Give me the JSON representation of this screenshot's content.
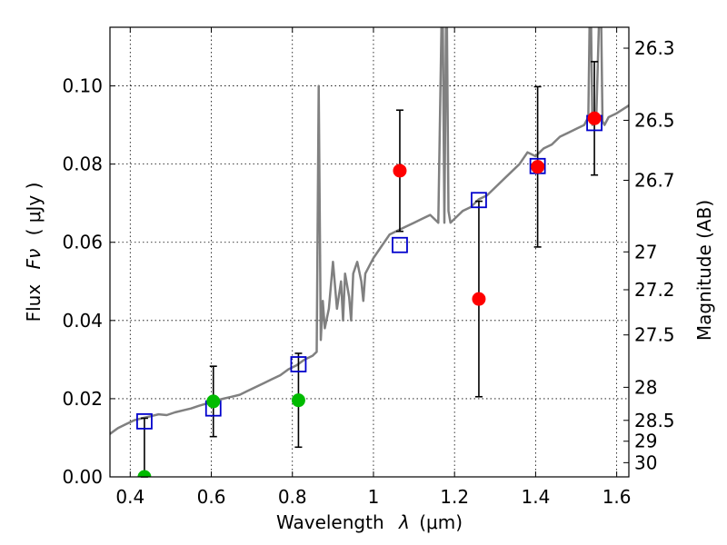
{
  "chart_data": {
    "type": "scatter",
    "xlabel_prefix": "Wavelength",
    "xlabel_var": "λ",
    "xlabel_unit": "(μm)",
    "ylabel_prefix": "Flux",
    "ylabel_var": "Fν",
    "ylabel_unit": "( μJy )",
    "y2label": "Magnitude (AB)",
    "xlim": [
      0.35,
      1.63
    ],
    "ylim": [
      0.0,
      0.115
    ],
    "x_ticks": [
      0.4,
      0.6,
      0.8,
      1.0,
      1.2,
      1.4,
      1.6
    ],
    "x_tick_labels": [
      "0.4",
      "0.6",
      "0.8",
      "1",
      "1.2",
      "1.4",
      "1.6"
    ],
    "y_ticks": [
      0.0,
      0.02,
      0.04,
      0.06,
      0.08,
      0.1
    ],
    "y_tick_labels": [
      "0.00",
      "0.02",
      "0.04",
      "0.06",
      "0.08",
      "0.10"
    ],
    "y2_ticks": [
      {
        "label": "26.3",
        "mag": 26.3
      },
      {
        "label": "26.5",
        "mag": 26.5
      },
      {
        "label": "26.7",
        "mag": 26.7
      },
      {
        "label": "27",
        "mag": 27.0
      },
      {
        "label": "27.2",
        "mag": 27.2
      },
      {
        "label": "27.5",
        "mag": 27.5
      },
      {
        "label": "28",
        "mag": 28.0
      },
      {
        "label": "28.5",
        "mag": 28.5
      },
      {
        "label": "29",
        "mag": 29.0
      },
      {
        "label": "30",
        "mag": 30.0
      }
    ],
    "grid": true,
    "colors": {
      "model": "#808080",
      "model_photometry": "#0000cc",
      "green_points": "#00bb00",
      "red_points": "#ff0000",
      "errorbars": "#000000"
    },
    "series": [
      {
        "name": "model_spectrum",
        "style": "line",
        "x": [
          0.35,
          0.37,
          0.39,
          0.41,
          0.43,
          0.45,
          0.47,
          0.49,
          0.51,
          0.53,
          0.55,
          0.57,
          0.59,
          0.61,
          0.63,
          0.65,
          0.67,
          0.69,
          0.71,
          0.73,
          0.75,
          0.77,
          0.79,
          0.81,
          0.83,
          0.85,
          0.86,
          0.865,
          0.87,
          0.875,
          0.88,
          0.89,
          0.9,
          0.91,
          0.92,
          0.925,
          0.93,
          0.94,
          0.945,
          0.95,
          0.96,
          0.97,
          0.975,
          0.98,
          0.99,
          1.0,
          1.02,
          1.04,
          1.06,
          1.08,
          1.1,
          1.12,
          1.14,
          1.16,
          1.17,
          1.175,
          1.18,
          1.185,
          1.19,
          1.2,
          1.22,
          1.24,
          1.26,
          1.28,
          1.3,
          1.32,
          1.34,
          1.36,
          1.38,
          1.4,
          1.42,
          1.44,
          1.46,
          1.48,
          1.5,
          1.52,
          1.53,
          1.535,
          1.54,
          1.55,
          1.56,
          1.565,
          1.57,
          1.58,
          1.6,
          1.63
        ],
        "y": [
          0.011,
          0.0125,
          0.0135,
          0.0145,
          0.015,
          0.0155,
          0.016,
          0.0158,
          0.0165,
          0.017,
          0.0175,
          0.0182,
          0.0188,
          0.0195,
          0.02,
          0.0205,
          0.021,
          0.022,
          0.023,
          0.024,
          0.025,
          0.026,
          0.0275,
          0.0285,
          0.03,
          0.031,
          0.032,
          0.1,
          0.035,
          0.045,
          0.038,
          0.043,
          0.055,
          0.043,
          0.05,
          0.04,
          0.052,
          0.046,
          0.04,
          0.052,
          0.055,
          0.05,
          0.045,
          0.052,
          0.054,
          0.056,
          0.059,
          0.062,
          0.063,
          0.064,
          0.065,
          0.066,
          0.067,
          0.065,
          0.13,
          0.065,
          0.13,
          0.068,
          0.065,
          0.066,
          0.068,
          0.069,
          0.071,
          0.072,
          0.074,
          0.076,
          0.078,
          0.08,
          0.083,
          0.082,
          0.084,
          0.085,
          0.087,
          0.088,
          0.089,
          0.09,
          0.092,
          0.13,
          0.09,
          0.093,
          0.13,
          0.091,
          0.09,
          0.092,
          0.093,
          0.095
        ]
      },
      {
        "name": "model_photometry",
        "style": "open-square",
        "x": [
          0.435,
          0.605,
          0.815,
          1.065,
          1.26,
          1.405,
          1.545
        ],
        "y": [
          0.0142,
          0.0175,
          0.0288,
          0.0593,
          0.0708,
          0.0795,
          0.0905
        ]
      },
      {
        "name": "observed_optical",
        "style": "filled-circle",
        "x": [
          0.435,
          0.605,
          0.815
        ],
        "y": [
          0.0,
          0.0193,
          0.0196
        ],
        "err_low": [
          0.015,
          0.009,
          0.012
        ],
        "err_high": [
          0.015,
          0.009,
          0.012
        ]
      },
      {
        "name": "observed_infrared",
        "style": "filled-circle",
        "x": [
          1.065,
          1.26,
          1.405,
          1.545
        ],
        "y": [
          0.0783,
          0.0455,
          0.0793,
          0.0917
        ],
        "err_low": [
          0.0155,
          0.025,
          0.0205,
          0.0145
        ],
        "err_high": [
          0.0155,
          0.025,
          0.0205,
          0.0145
        ]
      }
    ]
  }
}
